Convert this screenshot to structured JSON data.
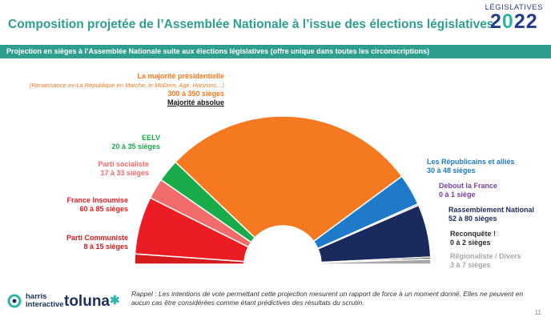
{
  "header": {
    "title": "Composition projetée de l’Assemblée Nationale à l’issue des élections législatives",
    "logo_top": "LÉGISLATIVES",
    "logo_year_a": "2",
    "logo_year_b": "0",
    "logo_year_c": "22"
  },
  "banner": {
    "text": "Projection en sièges à l’Assemblée Nationale suite aux élections législatives (offre unique dans toutes les circonscriptions)"
  },
  "chart_data": {
    "type": "pie",
    "shape": "half-donut",
    "total_seats": 577,
    "majority_label": "Majorité absolue",
    "series": [
      {
        "name": "Parti Communiste",
        "range": "8 à 15 sièges",
        "min": 8,
        "max": 15,
        "color": "#d41a1a"
      },
      {
        "name": "France Insoumise",
        "range": "60 à 85 sièges",
        "min": 60,
        "max": 85,
        "color": "#ec1c24"
      },
      {
        "name": "Parti socialiste",
        "range": "17 à 33 sièges",
        "min": 17,
        "max": 33,
        "color": "#f26c6c"
      },
      {
        "name": "EELV",
        "range": "20 à 35 sièges",
        "min": 20,
        "max": 35,
        "color": "#1aab4b"
      },
      {
        "name": "La majorité présidentielle",
        "subtitle": "(Renaissance ex-La République en Marche, le MoDem, Agir, Horizons…)",
        "range": "300 à 350 sièges",
        "min": 300,
        "max": 350,
        "color": "#f47920"
      },
      {
        "name": "Les Républicains et alliés",
        "range": "30 à 48 sièges",
        "min": 30,
        "max": 48,
        "color": "#1f7ac9"
      },
      {
        "name": "Debout la France",
        "range": "0 à 1 siège",
        "min": 0,
        "max": 1,
        "color": "#7b3fa0"
      },
      {
        "name": "Rassemblement National",
        "range": "52 à 80 sièges",
        "min": 52,
        "max": 80,
        "color": "#1b2a5c"
      },
      {
        "name": "Reconquête !",
        "range": "0 à 2 sièges",
        "min": 0,
        "max": 2,
        "color": "#2b2b2b"
      },
      {
        "name": "Régionaliste / Divers",
        "range": "3 à 7 sièges",
        "min": 3,
        "max": 7,
        "color": "#a7a7a7"
      }
    ]
  },
  "footer": {
    "note": "Rappel : Les intentions de vote permettant cette projection mesurent un rapport de force à un moment donné. Elles ne peuvent en aucun cas être considérées comme étant prédictives des résultats du scrutin.",
    "page": "11",
    "harris_line1": "harris",
    "harris_line2": "interactive",
    "toluna": "toluna",
    "toluna_star": "✱"
  }
}
